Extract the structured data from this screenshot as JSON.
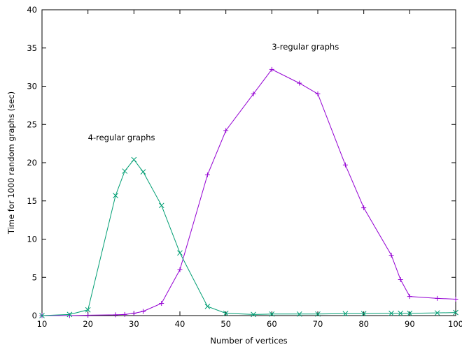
{
  "chart_data": {
    "type": "line",
    "title": "",
    "xlabel": "Number of vertices",
    "ylabel": "Time for 1000 random graphs (sec)",
    "xlim": [
      10,
      100
    ],
    "ylim": [
      0,
      40
    ],
    "xticks": [
      10,
      20,
      30,
      40,
      50,
      60,
      70,
      80,
      90,
      100
    ],
    "yticks": [
      0,
      5,
      10,
      15,
      20,
      25,
      30,
      35,
      40
    ],
    "grid": false,
    "annotations": [
      {
        "text": "3-regular graphs",
        "x": 60,
        "y": 34.8
      },
      {
        "text": "4-regular graphs",
        "x": 20,
        "y": 22.9
      }
    ],
    "series": [
      {
        "label": "3-regular graphs",
        "color": "#9400d3",
        "marker": "plus",
        "x": [
          10,
          16,
          20,
          26,
          28,
          30,
          32,
          36,
          40,
          46,
          50,
          56,
          60,
          66,
          70,
          76,
          80,
          86,
          88,
          90,
          96,
          100
        ],
        "y": [
          0.0,
          0.0,
          0.05,
          0.1,
          0.15,
          0.3,
          0.55,
          1.6,
          6.0,
          18.4,
          24.2,
          29.0,
          32.2,
          30.4,
          29.0,
          19.7,
          14.1,
          7.9,
          4.7,
          2.5,
          2.25,
          2.15
        ]
      },
      {
        "label": "4-regular graphs",
        "color": "#009e73",
        "marker": "x",
        "x": [
          10,
          16,
          20,
          26,
          28,
          30,
          32,
          36,
          40,
          46,
          50,
          56,
          60,
          66,
          70,
          76,
          80,
          86,
          88,
          90,
          96,
          100
        ],
        "y": [
          0.0,
          0.15,
          0.75,
          15.7,
          18.9,
          20.4,
          18.8,
          14.4,
          8.2,
          1.2,
          0.3,
          0.15,
          0.2,
          0.2,
          0.2,
          0.25,
          0.25,
          0.3,
          0.3,
          0.3,
          0.35,
          0.4
        ]
      }
    ]
  }
}
